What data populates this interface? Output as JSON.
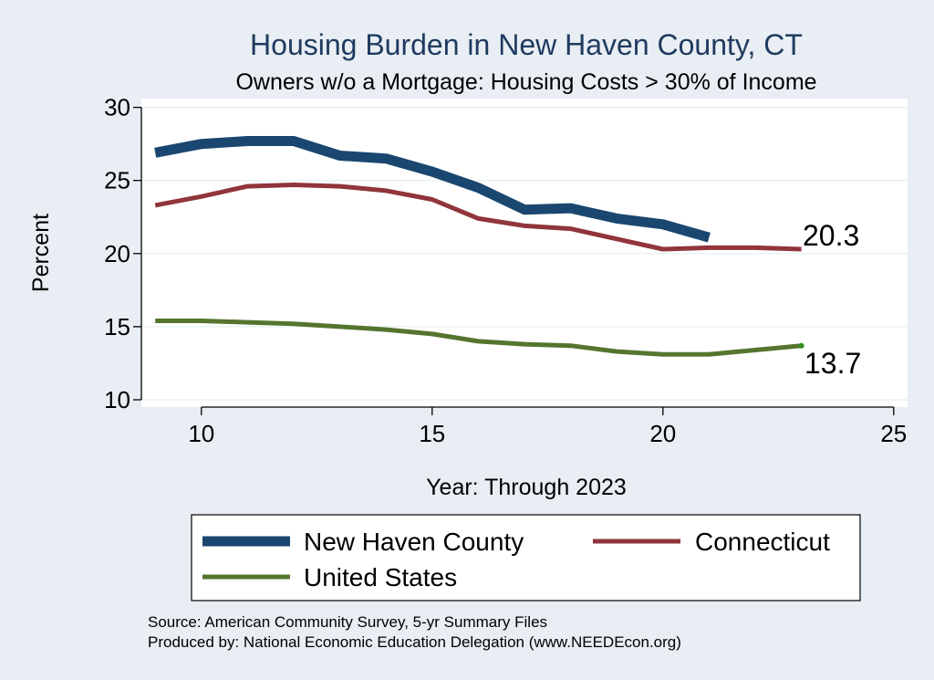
{
  "chart_data": {
    "type": "line",
    "title": "Housing Burden in New Haven County, CT",
    "subtitle": "Owners w/o a Mortgage: Housing Costs > 30% of Income",
    "xlabel": "Year: Through 2023",
    "ylabel": "Percent",
    "xlim": [
      8.7,
      25.3
    ],
    "ylim": [
      9.5,
      30.6
    ],
    "xticks": [
      10,
      15,
      20,
      25
    ],
    "yticks": [
      10,
      15,
      20,
      25,
      30
    ],
    "grid": true,
    "legend_position": "bottom",
    "series": [
      {
        "name": "New Haven County",
        "color": "#1a476f",
        "x": [
          9,
          10,
          11,
          12,
          13,
          14,
          15,
          16,
          17,
          18,
          19,
          20,
          21
        ],
        "values": [
          26.9,
          27.5,
          27.7,
          27.7,
          26.7,
          26.5,
          25.6,
          24.5,
          23.0,
          23.1,
          22.4,
          22.0,
          21.1
        ]
      },
      {
        "name": "Connecticut",
        "color": "#90353b",
        "x": [
          9,
          10,
          11,
          12,
          13,
          14,
          15,
          16,
          17,
          18,
          19,
          20,
          21,
          22,
          23
        ],
        "values": [
          23.3,
          23.9,
          24.6,
          24.7,
          24.6,
          24.3,
          23.7,
          22.4,
          21.9,
          21.7,
          21.0,
          20.3,
          20.4,
          20.4,
          20.3
        ]
      },
      {
        "name": "United States",
        "color": "#55752f",
        "x": [
          9,
          10,
          11,
          12,
          13,
          14,
          15,
          16,
          17,
          18,
          19,
          20,
          21,
          22,
          23
        ],
        "values": [
          15.4,
          15.4,
          15.3,
          15.2,
          15.0,
          14.8,
          14.5,
          14.0,
          13.8,
          13.7,
          13.3,
          13.1,
          13.1,
          13.4,
          13.7
        ]
      }
    ],
    "end_labels": [
      {
        "text": "20.3",
        "series": "Connecticut"
      },
      {
        "text": "13.7",
        "series": "United States"
      }
    ],
    "end_marker_color": "#2e8b1e",
    "source": "Source: American Community Survey, 5-yr Summary Files",
    "produced_by": "Produced by: National Economic Education Delegation (www.NEEDEcon.org)"
  }
}
